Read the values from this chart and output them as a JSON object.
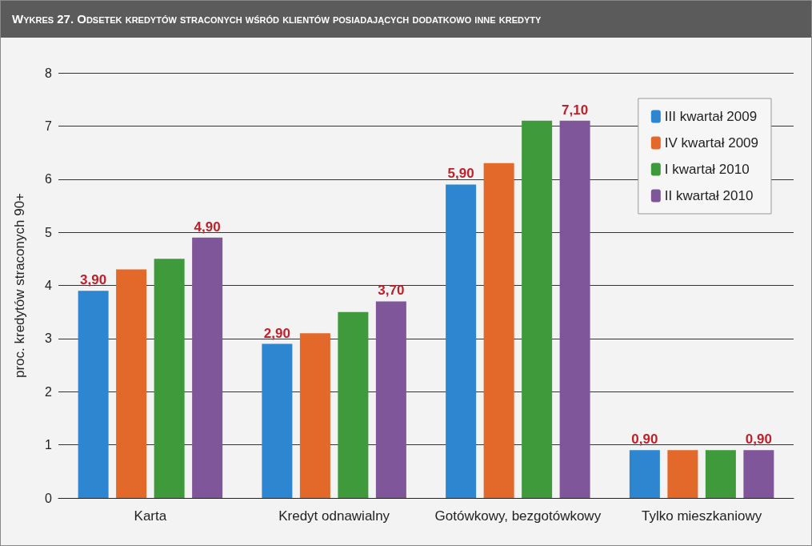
{
  "chart_data": {
    "type": "bar",
    "title": "Wykres 27. Odsetek kredytów straconych wśród klientów posiadających dodatkowo inne kredyty",
    "ylabel": "proc. kredytów straconych 90+",
    "categories": [
      "Karta",
      "Kredyt odnawialny",
      "Gotówkowy, bezgotówkowy",
      "Tylko mieszkaniowy"
    ],
    "series": [
      {
        "name": "III kwartał 2009",
        "color": "#2f86d0",
        "values": [
          3.9,
          2.9,
          5.9,
          0.9
        ],
        "value_labels": [
          "3,90",
          "2,90",
          "5,90",
          "0,90"
        ]
      },
      {
        "name": "IV kwartał 2009",
        "color": "#e2692a",
        "values": [
          4.3,
          3.1,
          6.3,
          0.9
        ]
      },
      {
        "name": "I kwartał 2010",
        "color": "#3f9a3c",
        "values": [
          4.5,
          3.5,
          7.1,
          0.9
        ]
      },
      {
        "name": "II kwartał 2010",
        "color": "#80569a",
        "values": [
          4.9,
          3.7,
          7.1,
          0.9
        ],
        "value_labels": [
          "4,90",
          "3,70",
          "7,10",
          "0,90"
        ]
      }
    ],
    "ylim": [
      0,
      8
    ],
    "yticks": [
      0,
      1,
      2,
      3,
      4,
      5,
      6,
      7,
      8
    ],
    "grid": "y",
    "legend": "top right"
  }
}
